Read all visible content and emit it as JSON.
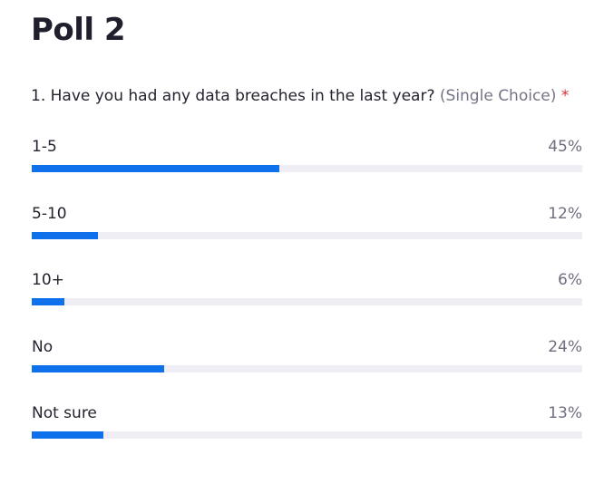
{
  "poll": {
    "title": "Poll 2",
    "question": {
      "number_text": "1. Have you had any data breaches in the last year?",
      "type_text": "(Single Choice)",
      "required_mark": "*"
    },
    "options": [
      {
        "label": "1-5",
        "percent_text": "45%",
        "fraction": 0.45
      },
      {
        "label": "5-10",
        "percent_text": "12%",
        "fraction": 0.12
      },
      {
        "label": "10+",
        "percent_text": "6%",
        "fraction": 0.06
      },
      {
        "label": "No",
        "percent_text": "24%",
        "fraction": 0.24
      },
      {
        "label": "Not sure",
        "percent_text": "13%",
        "fraction": 0.13
      }
    ]
  },
  "colors": {
    "bar_fill": "#0e71eb",
    "bar_track": "#eeeef4",
    "required": "#d9303e"
  }
}
